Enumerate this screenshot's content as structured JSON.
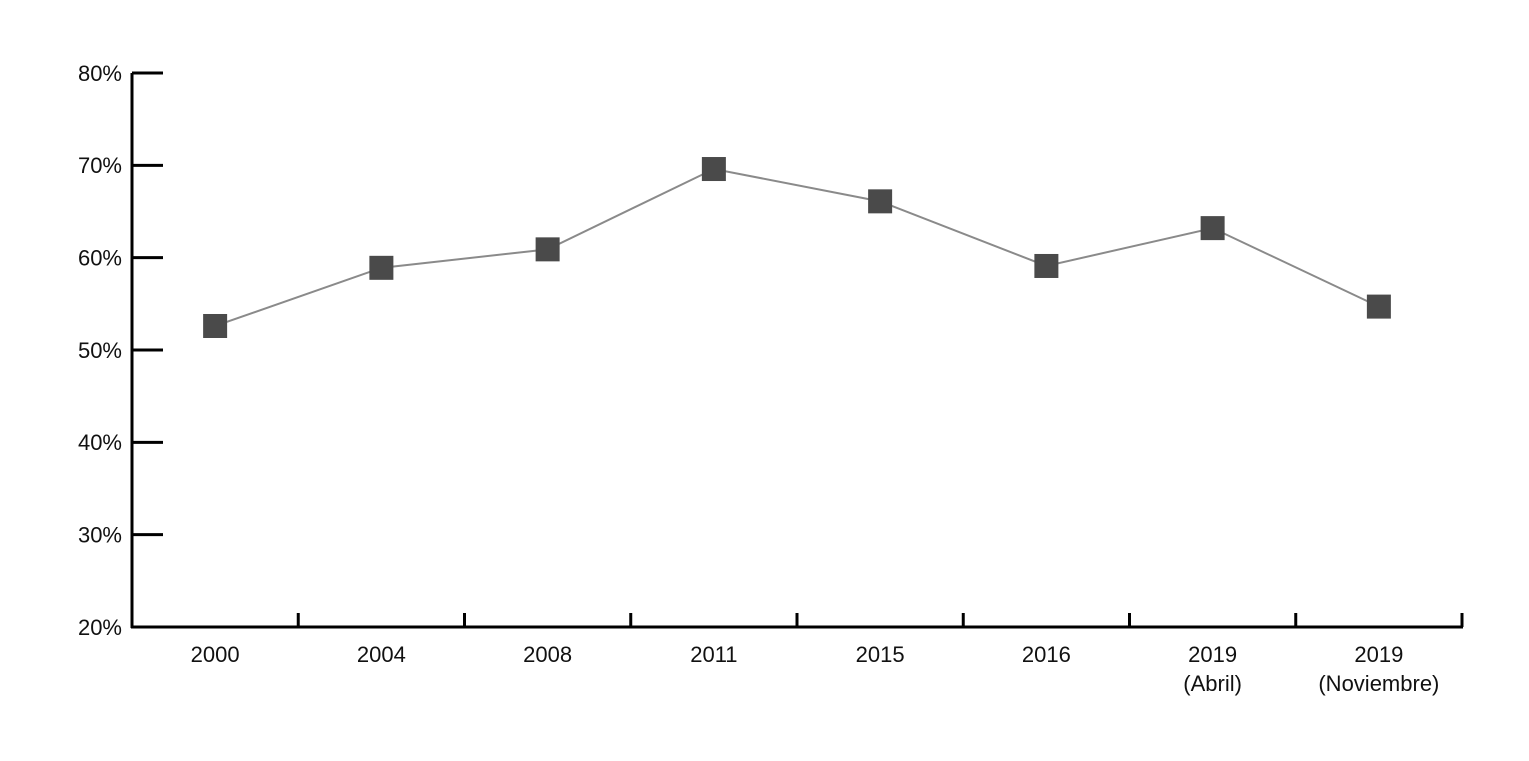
{
  "chart_data": {
    "type": "line",
    "categories": [
      "2000",
      "2004",
      "2008",
      "2011",
      "2015",
      "2016",
      "2019\n(Abril)",
      "2019\n(Noviembre)"
    ],
    "series": [
      {
        "name": null,
        "color": "#4a4a4a",
        "values": [
          52.6,
          58.9,
          60.9,
          69.6,
          66.1,
          59.1,
          63.2,
          54.7
        ]
      }
    ],
    "ylim": [
      20,
      80
    ],
    "yticks": [
      {
        "value": 20,
        "label": "20%"
      },
      {
        "value": 30,
        "label": "30%"
      },
      {
        "value": 40,
        "label": "40%"
      },
      {
        "value": 50,
        "label": "50%"
      },
      {
        "value": 60,
        "label": "60%"
      },
      {
        "value": 70,
        "label": "70%"
      },
      {
        "value": 80,
        "label": "80%"
      }
    ],
    "grid": false
  }
}
